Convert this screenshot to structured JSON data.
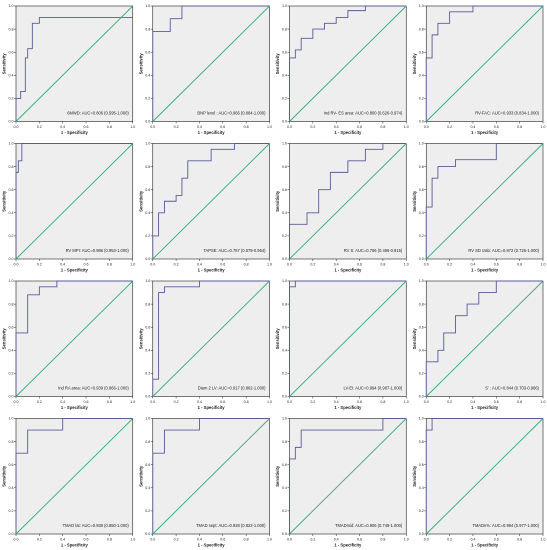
{
  "chart_data": [
    {
      "type": "line",
      "xlabel": "1 - Specificity",
      "ylabel": "Sensitivity",
      "xlim": [
        0,
        1
      ],
      "ylim": [
        0,
        1
      ],
      "xticks": [
        "0.0",
        "0.2",
        "0.4",
        "0.6",
        "0.8",
        "1.0"
      ],
      "yticks": [
        "0.0",
        "0.2",
        "0.4",
        "0.6",
        "0.8",
        "1.0"
      ],
      "annotation": "6MWD: AUC=0.806 (0.595-1.000)",
      "grid": false,
      "series": [
        {
          "x": [
            0,
            0,
            0.04,
            0.04,
            0.08,
            0.08,
            0.1,
            0.1,
            0.14,
            0.14,
            0.2,
            0.2,
            1
          ],
          "y": [
            0,
            0.2,
            0.2,
            0.26,
            0.26,
            0.55,
            0.55,
            0.63,
            0.63,
            0.85,
            0.85,
            0.9,
            0.9
          ]
        },
        {
          "x": [
            0,
            1
          ],
          "y": [
            0,
            1
          ]
        }
      ]
    },
    {
      "type": "line",
      "xlabel": "1 - Specificity",
      "ylabel": "Sensitivity",
      "xlim": [
        0,
        1
      ],
      "ylim": [
        0,
        1
      ],
      "xticks": [
        "0.0",
        "0.2",
        "0.4",
        "0.6",
        "0.8",
        "1.0"
      ],
      "yticks": [
        "0.0",
        "0.2",
        "0.4",
        "0.6",
        "0.8",
        "1.0"
      ],
      "annotation": "BNP level : AUC=0.966 (0.884-1.000)",
      "grid": false,
      "series": [
        {
          "x": [
            0,
            0,
            0.15,
            0.15,
            0.25,
            0.25,
            1
          ],
          "y": [
            0,
            0.78,
            0.78,
            0.89,
            0.89,
            1,
            1
          ]
        },
        {
          "x": [
            0,
            1
          ],
          "y": [
            0,
            1
          ]
        }
      ]
    },
    {
      "type": "line",
      "xlabel": "1 - Specificity",
      "ylabel": "Sensitivity",
      "xlim": [
        0,
        1
      ],
      "ylim": [
        0,
        1
      ],
      "xticks": [
        "0.0",
        "0.2",
        "0.4",
        "0.6",
        "0.8",
        "1.0"
      ],
      "yticks": [
        "0.0",
        "0.2",
        "0.4",
        "0.6",
        "0.8",
        "1.0"
      ],
      "annotation": "Ind RV- ES area: AUC=0.800 (0.626-0.974)",
      "grid": false,
      "series": [
        {
          "x": [
            0,
            0,
            0.05,
            0.05,
            0.1,
            0.1,
            0.2,
            0.2,
            0.3,
            0.3,
            0.4,
            0.4,
            0.5,
            0.5,
            0.65,
            0.65,
            1
          ],
          "y": [
            0,
            0.55,
            0.55,
            0.62,
            0.62,
            0.72,
            0.72,
            0.8,
            0.8,
            0.85,
            0.85,
            0.9,
            0.9,
            0.96,
            0.96,
            1,
            1
          ]
        },
        {
          "x": [
            0,
            1
          ],
          "y": [
            0,
            1
          ]
        }
      ]
    },
    {
      "type": "line",
      "xlabel": "1 - Specificity",
      "ylabel": "Sensitivity",
      "xlim": [
        0,
        1
      ],
      "ylim": [
        0,
        1
      ],
      "xticks": [
        "0.0",
        "0.2",
        "0.4",
        "0.6",
        "0.8",
        "1.0"
      ],
      "yticks": [
        "0.0",
        "0.2",
        "0.4",
        "0.6",
        "0.8",
        "1.0"
      ],
      "annotation": "RV-FAC: AUC=0.933 (0.834-1.000)",
      "grid": false,
      "series": [
        {
          "x": [
            0,
            0,
            0.05,
            0.05,
            0.1,
            0.1,
            0.2,
            0.2,
            0.4,
            0.4,
            1
          ],
          "y": [
            0,
            0.55,
            0.55,
            0.75,
            0.75,
            0.85,
            0.85,
            0.95,
            0.95,
            1,
            1
          ]
        },
        {
          "x": [
            0,
            1
          ],
          "y": [
            0,
            1
          ]
        }
      ]
    },
    {
      "type": "line",
      "xlabel": "1 - Specificity",
      "ylabel": "Sensitivity",
      "xlim": [
        0,
        1
      ],
      "ylim": [
        0,
        1
      ],
      "xticks": [
        "0.0",
        "0.2",
        "0.4",
        "0.6",
        "0.8",
        "1.0"
      ],
      "yticks": [
        "0.0",
        "0.2",
        "0.4",
        "0.6",
        "0.8",
        "1.0"
      ],
      "annotation": "RV MPI: AUC=0.986 (0.953-1.000)",
      "grid": false,
      "series": [
        {
          "x": [
            0,
            0,
            0.02,
            0.02,
            0.05,
            0.05,
            1
          ],
          "y": [
            0,
            0.75,
            0.75,
            0.85,
            0.85,
            1,
            1
          ]
        },
        {
          "x": [
            0,
            1
          ],
          "y": [
            0,
            1
          ]
        }
      ]
    },
    {
      "type": "line",
      "xlabel": "1 - Specificity",
      "ylabel": "Sensitivity",
      "xlim": [
        0,
        1
      ],
      "ylim": [
        0,
        1
      ],
      "xticks": [
        "0.0",
        "0.2",
        "0.4",
        "0.6",
        "0.8",
        "1.0"
      ],
      "yticks": [
        "0.0",
        "0.2",
        "0.4",
        "0.6",
        "0.8",
        "1.0"
      ],
      "annotation": "TAPSE: AUC=0.767 (0.579-0.954)",
      "grid": false,
      "series": [
        {
          "x": [
            0,
            0,
            0.05,
            0.05,
            0.1,
            0.1,
            0.2,
            0.2,
            0.25,
            0.25,
            0.3,
            0.3,
            0.5,
            0.5,
            0.7,
            0.7,
            1
          ],
          "y": [
            0,
            0.2,
            0.2,
            0.4,
            0.4,
            0.5,
            0.5,
            0.55,
            0.55,
            0.7,
            0.7,
            0.85,
            0.85,
            0.95,
            0.95,
            1,
            1
          ]
        },
        {
          "x": [
            0,
            1
          ],
          "y": [
            0,
            1
          ]
        }
      ]
    },
    {
      "type": "line",
      "xlabel": "1 - Specificity",
      "ylabel": "Sensitivity",
      "xlim": [
        0,
        1
      ],
      "ylim": [
        0,
        1
      ],
      "xticks": [
        "0.0",
        "0.2",
        "0.4",
        "0.6",
        "0.8",
        "1.0"
      ],
      "yticks": [
        "0.0",
        "0.2",
        "0.4",
        "0.6",
        "0.8",
        "1.0"
      ],
      "annotation": "RV S: AUC=0.706 (0.496-0.915)",
      "grid": false,
      "series": [
        {
          "x": [
            0,
            0,
            0.15,
            0.15,
            0.25,
            0.25,
            0.35,
            0.35,
            0.5,
            0.5,
            0.65,
            0.65,
            0.8,
            0.8,
            1
          ],
          "y": [
            0,
            0.3,
            0.3,
            0.4,
            0.4,
            0.6,
            0.6,
            0.75,
            0.75,
            0.85,
            0.85,
            0.95,
            0.95,
            1,
            1
          ]
        },
        {
          "x": [
            0,
            1
          ],
          "y": [
            0,
            1
          ]
        }
      ]
    },
    {
      "type": "line",
      "xlabel": "1 - Specificity",
      "ylabel": "Sensitivity",
      "xlim": [
        0,
        1
      ],
      "ylim": [
        0,
        1
      ],
      "xticks": [
        "0.0",
        "0.2",
        "0.4",
        "0.6",
        "0.8",
        "1.0"
      ],
      "yticks": [
        "0.0",
        "0.2",
        "0.4",
        "0.6",
        "0.8",
        "1.0"
      ],
      "annotation": "RV SD ratio: AUC=0.872 (0.726-1.000)",
      "grid": false,
      "series": [
        {
          "x": [
            0,
            0,
            0.05,
            0.05,
            0.1,
            0.1,
            0.25,
            0.25,
            0.6,
            0.6,
            1
          ],
          "y": [
            0,
            0.45,
            0.45,
            0.7,
            0.7,
            0.8,
            0.8,
            0.86,
            0.86,
            1,
            1
          ]
        },
        {
          "x": [
            0,
            1
          ],
          "y": [
            0,
            1
          ]
        }
      ]
    },
    {
      "type": "line",
      "xlabel": "1 - Specificity",
      "ylabel": "Sensitivity",
      "xlim": [
        0,
        1
      ],
      "ylim": [
        0,
        1
      ],
      "xticks": [
        "0.0",
        "0.2",
        "0.4",
        "0.6",
        "0.8",
        "1.0"
      ],
      "yticks": [
        "0.0",
        "0.2",
        "0.4",
        "0.6",
        "0.8",
        "1.0"
      ],
      "annotation": "Ind RA area: AUC=0.939 (0.866-1.000)",
      "grid": false,
      "series": [
        {
          "x": [
            0,
            0,
            0.1,
            0.1,
            0.2,
            0.2,
            0.35,
            0.35,
            1
          ],
          "y": [
            0,
            0.55,
            0.55,
            0.88,
            0.88,
            0.95,
            0.95,
            1,
            1
          ]
        },
        {
          "x": [
            0,
            1
          ],
          "y": [
            0,
            1
          ]
        }
      ]
    },
    {
      "type": "line",
      "xlabel": "1 - Specificity",
      "ylabel": "Sensitivity",
      "xlim": [
        0,
        1
      ],
      "ylim": [
        0,
        1
      ],
      "xticks": [
        "0.0",
        "0.2",
        "0.4",
        "0.6",
        "0.8",
        "1.0"
      ],
      "yticks": [
        "0.0",
        "0.2",
        "0.4",
        "0.6",
        "0.8",
        "1.0"
      ],
      "annotation": "Diam 2 LV: AUC=0.917 (0.802-1.000)",
      "grid": false,
      "series": [
        {
          "x": [
            0,
            0,
            0.05,
            0.05,
            0.1,
            0.1,
            0.4,
            0.4,
            1
          ],
          "y": [
            0,
            0.15,
            0.15,
            0.9,
            0.9,
            0.95,
            0.95,
            1,
            1
          ]
        },
        {
          "x": [
            0,
            1
          ],
          "y": [
            0,
            1
          ]
        }
      ]
    },
    {
      "type": "line",
      "xlabel": "1 - Specificity",
      "ylabel": "Sensitivity",
      "xlim": [
        0,
        1
      ],
      "ylim": [
        0,
        1
      ],
      "xticks": [
        "0.0",
        "0.2",
        "0.4",
        "0.6",
        "0.8",
        "1.0"
      ],
      "yticks": [
        "0.0",
        "0.2",
        "0.4",
        "0.6",
        "0.8",
        "1.0"
      ],
      "annotation": "LV-EI: AUC=0.994 (0.987-1.000)",
      "grid": false,
      "series": [
        {
          "x": [
            0,
            0,
            0.05,
            0.05,
            1
          ],
          "y": [
            0,
            0.95,
            0.95,
            1,
            1
          ]
        },
        {
          "x": [
            0,
            1
          ],
          "y": [
            0,
            1
          ]
        }
      ]
    },
    {
      "type": "line",
      "xlabel": "1 - Specificity",
      "ylabel": "Sensitivity",
      "xlim": [
        0,
        1
      ],
      "ylim": [
        0,
        1
      ],
      "xticks": [
        "0.0",
        "0.2",
        "0.4",
        "0.6",
        "0.8",
        "1.0"
      ],
      "yticks": [
        "0.0",
        "0.2",
        "0.4",
        "0.6",
        "0.8",
        "1.0"
      ],
      "annotation": "S' : AUC=0.844 (0.703-0.986)",
      "grid": false,
      "series": [
        {
          "x": [
            0,
            0,
            0.1,
            0.1,
            0.15,
            0.15,
            0.25,
            0.25,
            0.35,
            0.35,
            0.45,
            0.45,
            0.6,
            0.6,
            1
          ],
          "y": [
            0,
            0.3,
            0.3,
            0.4,
            0.4,
            0.55,
            0.55,
            0.7,
            0.7,
            0.8,
            0.8,
            0.9,
            0.9,
            1,
            1
          ]
        },
        {
          "x": [
            0,
            1
          ],
          "y": [
            0,
            1
          ]
        }
      ]
    },
    {
      "type": "line",
      "xlabel": "1 - Specificity",
      "ylabel": "Sensitivity",
      "xlim": [
        0,
        1
      ],
      "ylim": [
        0,
        1
      ],
      "xticks": [
        "0.0",
        "0.2",
        "0.4",
        "0.6",
        "0.8",
        "1.0"
      ],
      "yticks": [
        "0.0",
        "0.2",
        "0.4",
        "0.6",
        "0.8",
        "1.0"
      ],
      "annotation": "TMAD lat: AUC=0.939 (0.850-1.000)",
      "grid": false,
      "series": [
        {
          "x": [
            0,
            0,
            0.1,
            0.1,
            0.4,
            0.4,
            1
          ],
          "y": [
            0,
            0.7,
            0.7,
            0.9,
            0.9,
            1,
            1
          ]
        },
        {
          "x": [
            0,
            1
          ],
          "y": [
            0,
            1
          ]
        }
      ]
    },
    {
      "type": "line",
      "xlabel": "1 - Specificity",
      "ylabel": "Sensitivity",
      "xlim": [
        0,
        1
      ],
      "ylim": [
        0,
        1
      ],
      "xticks": [
        "0.0",
        "0.2",
        "0.4",
        "0.6",
        "0.8",
        "1.0"
      ],
      "yticks": [
        "0.0",
        "0.2",
        "0.4",
        "0.6",
        "0.8",
        "1.0"
      ],
      "annotation": "TMAD sept: AUC=0.928 (0.822-1.000)",
      "grid": false,
      "series": [
        {
          "x": [
            0,
            0,
            0.1,
            0.1,
            0.4,
            0.4,
            1
          ],
          "y": [
            0,
            0.7,
            0.7,
            0.9,
            0.9,
            1,
            1
          ]
        },
        {
          "x": [
            0,
            1
          ],
          "y": [
            0,
            1
          ]
        }
      ]
    },
    {
      "type": "line",
      "xlabel": "1 - Specificity",
      "ylabel": "Sensitivity",
      "xlim": [
        0,
        1
      ],
      "ylim": [
        0,
        1
      ],
      "xticks": [
        "0.0",
        "0.2",
        "0.4",
        "0.6",
        "0.8",
        "1.0"
      ],
      "yticks": [
        "0.0",
        "0.2",
        "0.4",
        "0.6",
        "0.8",
        "1.0"
      ],
      "annotation": "TMADmid: AUC=0.906 (0.749-1.000)",
      "grid": false,
      "series": [
        {
          "x": [
            0,
            0,
            0.05,
            0.05,
            0.1,
            0.1,
            0.8,
            0.8,
            1
          ],
          "y": [
            0,
            0.65,
            0.65,
            0.75,
            0.75,
            0.9,
            0.9,
            1,
            1
          ]
        },
        {
          "x": [
            0,
            1
          ],
          "y": [
            0,
            1
          ]
        }
      ]
    },
    {
      "type": "line",
      "xlabel": "1 - Specificity",
      "ylabel": "Sensitivity",
      "xlim": [
        0,
        1
      ],
      "ylim": [
        0,
        1
      ],
      "xticks": [
        "0.0",
        "0.2",
        "0.4",
        "0.6",
        "0.8",
        "1.0"
      ],
      "yticks": [
        "0.0",
        "0.2",
        "0.4",
        "0.6",
        "0.8",
        "1.0"
      ],
      "annotation": "TMADn%: AUC=0.994 (0.977-1.000)",
      "grid": false,
      "series": [
        {
          "x": [
            0,
            0,
            0.05,
            0.05,
            1
          ],
          "y": [
            0,
            0.9,
            0.9,
            1,
            1
          ]
        },
        {
          "x": [
            0,
            1
          ],
          "y": [
            0,
            1
          ]
        }
      ]
    }
  ],
  "colors": {
    "background": "#ffffff",
    "plot_area": "#eeeeee",
    "roc_line": "#5a5a9a",
    "reference_line": "#2fae7a",
    "axis": "#222222",
    "text": "#222222"
  }
}
